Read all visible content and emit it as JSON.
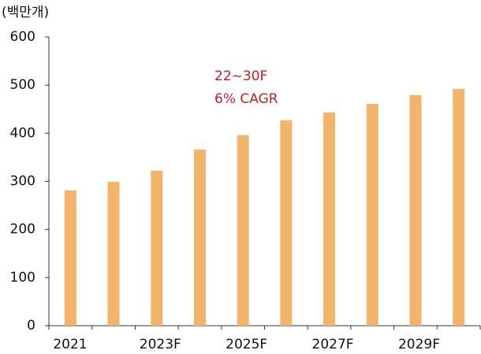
{
  "chart_data": {
    "type": "bar",
    "y_label": "(백만개)",
    "annotations": [
      "22~30F",
      "6% CAGR"
    ],
    "annotation_color": "#c0202a",
    "categories": [
      "2021",
      null,
      "2023F",
      null,
      "2025F",
      null,
      "2027F",
      null,
      "2029F",
      null
    ],
    "values": [
      281,
      299,
      322,
      366,
      396,
      427,
      443,
      461,
      479,
      492
    ],
    "color": "#f2b36b",
    "ylim": [
      0,
      600
    ],
    "yticks": [
      0,
      100,
      200,
      300,
      400,
      500,
      600
    ],
    "grid": false
  }
}
